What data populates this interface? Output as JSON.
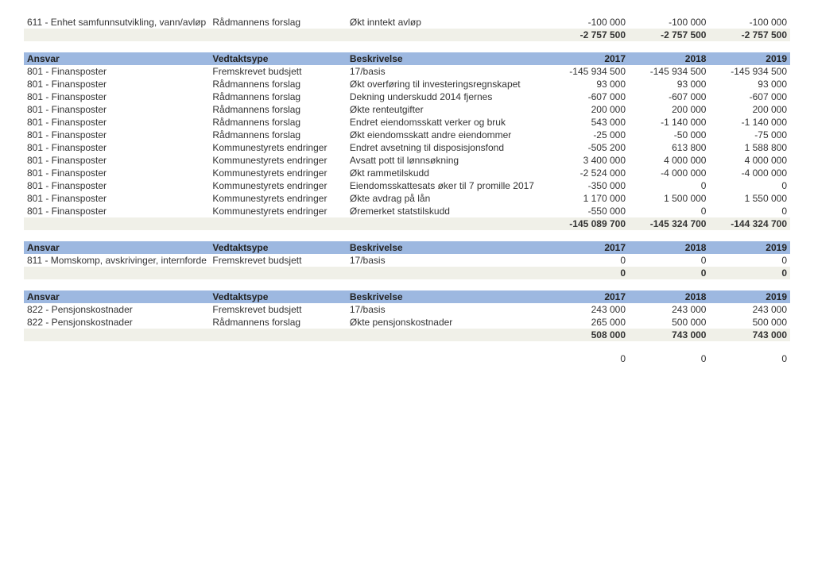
{
  "headers": {
    "ansvar": "Ansvar",
    "vedtak": "Vedtaktsype",
    "besk": "Beskrivelse",
    "y17": "2017",
    "y18": "2018",
    "y19": "2019"
  },
  "topRows": [
    {
      "ansvar": "611 - Enhet samfunnsutvikling, vann/avløp",
      "vedtak": "Rådmannens forslag",
      "besk": "Økt inntekt avløp",
      "y17": "-100 000",
      "y18": "-100 000",
      "y19": "-100 000"
    }
  ],
  "topTotal": {
    "y17": "-2 757 500",
    "y18": "-2 757 500",
    "y19": "-2 757 500"
  },
  "sec1Rows": [
    {
      "ansvar": "801 - Finansposter",
      "vedtak": "Fremskrevet budsjett",
      "besk": "17/basis",
      "y17": "-145 934 500",
      "y18": "-145 934 500",
      "y19": "-145 934 500"
    },
    {
      "ansvar": "801 - Finansposter",
      "vedtak": "Rådmannens forslag",
      "besk": "Økt overføring til investeringsregnskapet",
      "y17": "93 000",
      "y18": "93 000",
      "y19": "93 000"
    },
    {
      "ansvar": "801 - Finansposter",
      "vedtak": "Rådmannens forslag",
      "besk": "Dekning underskudd 2014 fjernes",
      "y17": "-607 000",
      "y18": "-607 000",
      "y19": "-607 000"
    },
    {
      "ansvar": "801 - Finansposter",
      "vedtak": "Rådmannens forslag",
      "besk": "Økte renteutgifter",
      "y17": "200 000",
      "y18": "200 000",
      "y19": "200 000"
    },
    {
      "ansvar": "801 - Finansposter",
      "vedtak": "Rådmannens forslag",
      "besk": "Endret eiendomsskatt verker og bruk",
      "y17": "543 000",
      "y18": "-1 140 000",
      "y19": "-1 140 000"
    },
    {
      "ansvar": "801 - Finansposter",
      "vedtak": "Rådmannens forslag",
      "besk": "Økt eiendomsskatt andre eiendommer",
      "y17": "-25 000",
      "y18": "-50 000",
      "y19": "-75 000"
    },
    {
      "ansvar": "801 - Finansposter",
      "vedtak": "Kommunestyrets endringer",
      "besk": "Endret avsetning til disposisjonsfond",
      "y17": "-505 200",
      "y18": "613 800",
      "y19": "1 588 800"
    },
    {
      "ansvar": "801 - Finansposter",
      "vedtak": "Kommunestyrets endringer",
      "besk": "Avsatt pott til lønnsøkning",
      "y17": "3 400 000",
      "y18": "4 000 000",
      "y19": "4 000 000"
    },
    {
      "ansvar": "801 - Finansposter",
      "vedtak": "Kommunestyrets endringer",
      "besk": "Økt rammetilskudd",
      "y17": "-2 524 000",
      "y18": "-4 000 000",
      "y19": "-4 000 000"
    },
    {
      "ansvar": "801 - Finansposter",
      "vedtak": "Kommunestyrets endringer",
      "besk": "Eiendomsskattesats øker til 7 promille 2017",
      "y17": "-350 000",
      "y18": "0",
      "y19": "0"
    },
    {
      "ansvar": "801 - Finansposter",
      "vedtak": "Kommunestyrets endringer",
      "besk": "Økte avdrag på lån",
      "y17": "1 170 000",
      "y18": "1 500 000",
      "y19": "1 550 000"
    },
    {
      "ansvar": "801 - Finansposter",
      "vedtak": "Kommunestyrets endringer",
      "besk": "Øremerket statstilskudd",
      "y17": "-550 000",
      "y18": "0",
      "y19": "0"
    }
  ],
  "sec1Total": {
    "y17": "-145 089 700",
    "y18": "-145 324 700",
    "y19": "-144 324 700"
  },
  "sec2Rows": [
    {
      "ansvar": "811 - Momskomp, avskrivinger, internforde",
      "vedtak": "Fremskrevet budsjett",
      "besk": "17/basis",
      "y17": "0",
      "y18": "0",
      "y19": "0"
    }
  ],
  "sec2Total": {
    "y17": "0",
    "y18": "0",
    "y19": "0"
  },
  "sec3Rows": [
    {
      "ansvar": "822 - Pensjonskostnader",
      "vedtak": "Fremskrevet budsjett",
      "besk": "17/basis",
      "y17": "243 000",
      "y18": "243 000",
      "y19": "243 000"
    },
    {
      "ansvar": "822 - Pensjonskostnader",
      "vedtak": "Rådmannens forslag",
      "besk": "Økte pensjonskostnader",
      "y17": "265 000",
      "y18": "500 000",
      "y19": "500 000"
    }
  ],
  "sec3Total": {
    "y17": "508 000",
    "y18": "743 000",
    "y19": "743 000"
  },
  "grandTotal": {
    "y17": "0",
    "y18": "0",
    "y19": "0"
  }
}
